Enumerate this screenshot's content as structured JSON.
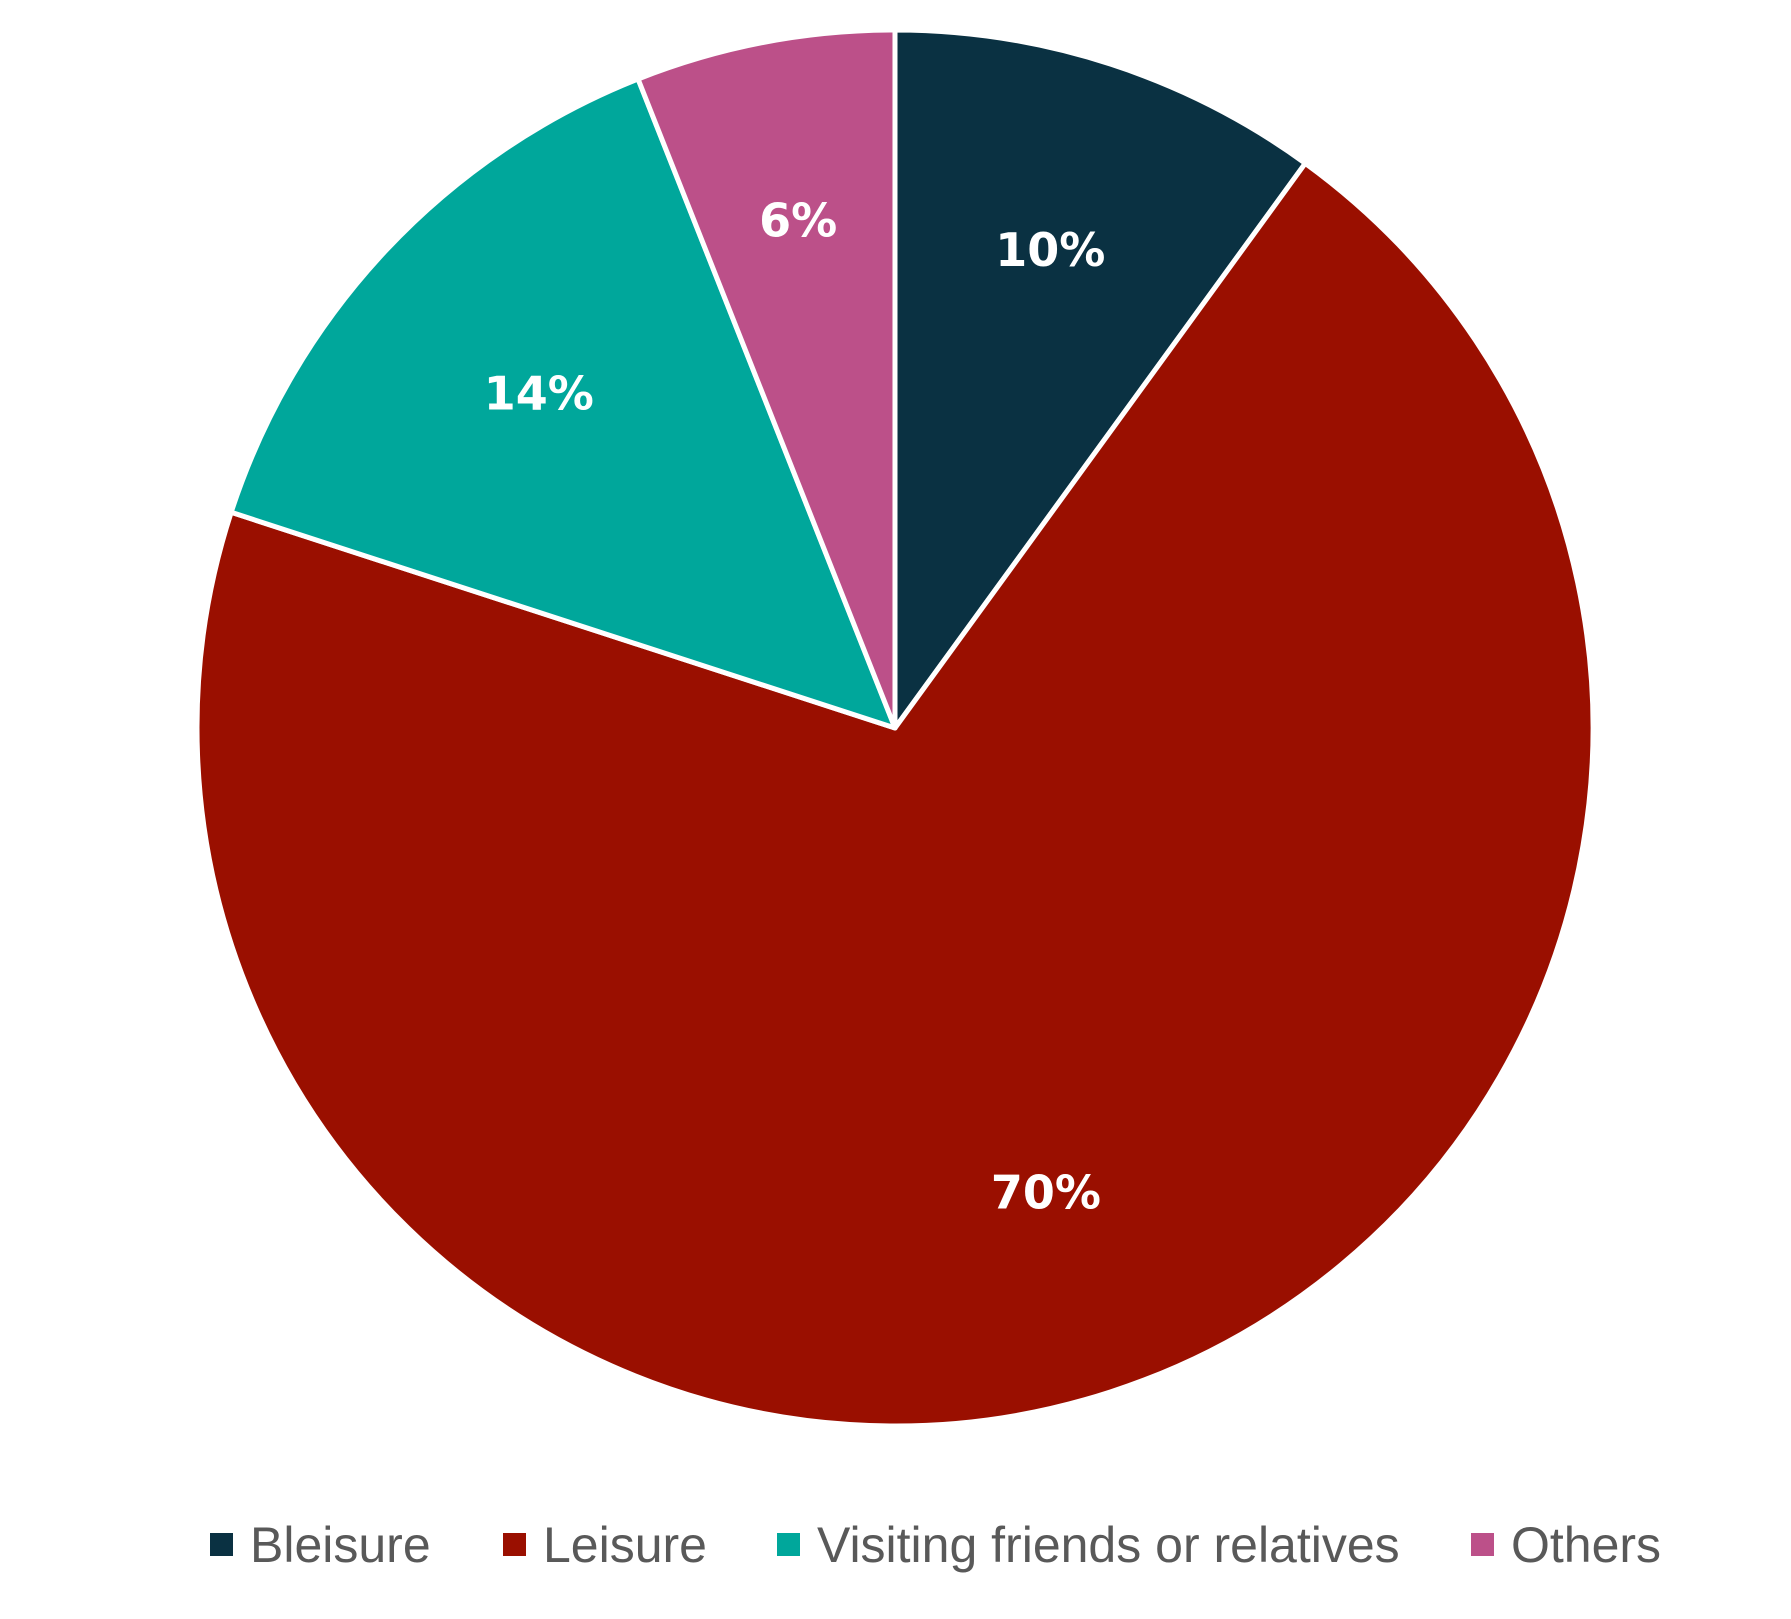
{
  "chart_data": {
    "type": "pie",
    "title": "",
    "categories": [
      "Bleisure",
      "Leisure",
      "Visiting friends or relatives",
      "Others"
    ],
    "values": [
      10,
      70,
      14,
      6
    ],
    "labels": [
      "10%",
      "70%",
      "14%",
      "6%"
    ],
    "colors": [
      "#0a3142",
      "#9a0f00",
      "#00a79b",
      "#bc5089"
    ],
    "start_angle": "12 o'clock",
    "direction": "clockwise",
    "legend_position": "bottom"
  }
}
